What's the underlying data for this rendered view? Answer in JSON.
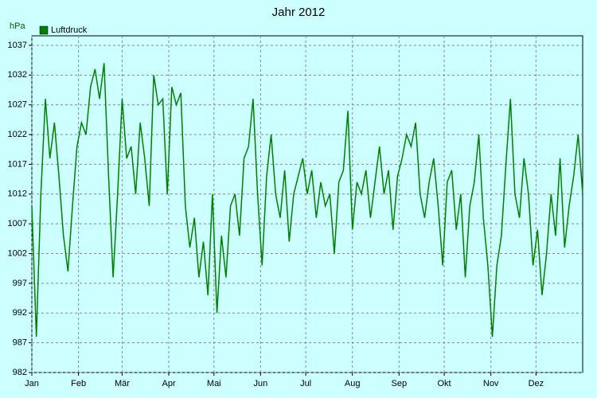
{
  "chart_data": {
    "type": "line",
    "title": "Jahr 2012",
    "y_label": "hPa",
    "legend": "top-left",
    "grid": true,
    "x": [
      0,
      3,
      6,
      9,
      12,
      15,
      18,
      21,
      24,
      27,
      30,
      33,
      36,
      39,
      42,
      45,
      48,
      51,
      54,
      57,
      60,
      63,
      66,
      69,
      72,
      75,
      78,
      81,
      84,
      87,
      90,
      93,
      96,
      99,
      102,
      105,
      108,
      111,
      114,
      117,
      120,
      123,
      126,
      129,
      132,
      135,
      138,
      141,
      144,
      147,
      150,
      153,
      156,
      159,
      162,
      165,
      168,
      171,
      174,
      177,
      180,
      183,
      186,
      189,
      192,
      195,
      198,
      201,
      204,
      207,
      210,
      213,
      216,
      219,
      222,
      225,
      228,
      231,
      234,
      237,
      240,
      243,
      246,
      249,
      252,
      255,
      258,
      261,
      264,
      267,
      270,
      273,
      276,
      279,
      282,
      285,
      288,
      291,
      294,
      297,
      300,
      303,
      306,
      309,
      312,
      315,
      318,
      321,
      324,
      327,
      330,
      333,
      336,
      339,
      342,
      345,
      348,
      351,
      354,
      357,
      360,
      363,
      366
    ],
    "series": [
      {
        "name": "Luftdruck",
        "color": "#008000",
        "values": [
          1010,
          988,
          1012,
          1028,
          1018,
          1024,
          1015,
          1005,
          999,
          1010,
          1020,
          1024,
          1022,
          1030,
          1033,
          1028,
          1034,
          1015,
          998,
          1012,
          1028,
          1018,
          1020,
          1012,
          1024,
          1018,
          1010,
          1032,
          1027,
          1028,
          1012,
          1030,
          1027,
          1029,
          1010,
          1003,
          1008,
          998,
          1004,
          995,
          1012,
          992,
          1005,
          998,
          1010,
          1012,
          1005,
          1018,
          1020,
          1028,
          1012,
          1000,
          1015,
          1022,
          1012,
          1008,
          1016,
          1004,
          1012,
          1015,
          1018,
          1012,
          1016,
          1008,
          1014,
          1010,
          1012,
          1002,
          1014,
          1016,
          1026,
          1006,
          1014,
          1012,
          1016,
          1008,
          1014,
          1020,
          1012,
          1016,
          1006,
          1015,
          1018,
          1022,
          1020,
          1024,
          1012,
          1008,
          1014,
          1018,
          1010,
          1000,
          1014,
          1016,
          1006,
          1012,
          998,
          1010,
          1014,
          1022,
          1008,
          1000,
          988,
          1000,
          1005,
          1017,
          1028,
          1012,
          1008,
          1018,
          1012,
          1000,
          1006,
          995,
          1002,
          1012,
          1005,
          1018,
          1003,
          1010,
          1015,
          1022,
          1012
        ]
      }
    ],
    "xlim": [
      0,
      366
    ],
    "xticks": [
      {
        "value": 0,
        "label": "Jan"
      },
      {
        "value": 31,
        "label": "Feb"
      },
      {
        "value": 60,
        "label": "Mär"
      },
      {
        "value": 91,
        "label": "Apr"
      },
      {
        "value": 121,
        "label": "Mai"
      },
      {
        "value": 152,
        "label": "Jun"
      },
      {
        "value": 182,
        "label": "Jul"
      },
      {
        "value": 213,
        "label": "Aug"
      },
      {
        "value": 244,
        "label": "Sep"
      },
      {
        "value": 274,
        "label": "Okt"
      },
      {
        "value": 305,
        "label": "Nov"
      },
      {
        "value": 335,
        "label": "Dez"
      }
    ],
    "ylim": [
      982,
      1038.6
    ],
    "yticks": [
      982,
      987,
      992,
      997,
      1002,
      1007,
      1012,
      1017,
      1022,
      1027,
      1032,
      1037
    ]
  }
}
